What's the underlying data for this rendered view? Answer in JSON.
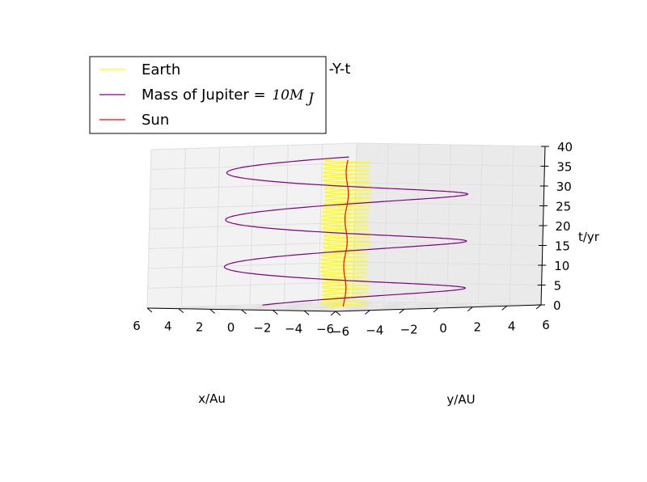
{
  "chart_data": {
    "type": "line",
    "projection": "3d",
    "title": "-Y-t",
    "xlabel": "x/Au",
    "ylabel": "y/AU",
    "zlabel": "t/yr",
    "xlim": [
      -6,
      6
    ],
    "ylim": [
      -6,
      6
    ],
    "zlim": [
      0,
      40
    ],
    "x_ticks": [
      "−6",
      "−4",
      "−2",
      "0",
      "2",
      "4",
      "6"
    ],
    "y_ticks": [
      "−6",
      "−4",
      "−2",
      "0",
      "2",
      "4",
      "6"
    ],
    "z_ticks": [
      "0",
      "5",
      "10",
      "15",
      "20",
      "25",
      "30",
      "35",
      "40"
    ],
    "grid": true,
    "legend_position": "top-left",
    "series": [
      {
        "name": "Earth",
        "color": "#ffff00",
        "orbit_radius_au": 1.0,
        "orbit_period_yr": 1.0,
        "t_start": 0,
        "t_end": 37
      },
      {
        "name": "Mass of Jupiter =",
        "name_math": "10M",
        "name_math_sub": "J",
        "color": "#800080",
        "orbit_radius_au": 5.2,
        "orbit_period_yr": 11.86,
        "t_start": 0,
        "t_end": 37
      },
      {
        "name": "Sun",
        "color": "#ff0000",
        "orbit_radius_au": 0.06,
        "orbit_period_yr": 11.86,
        "t_start": 0,
        "t_end": 37
      }
    ]
  }
}
